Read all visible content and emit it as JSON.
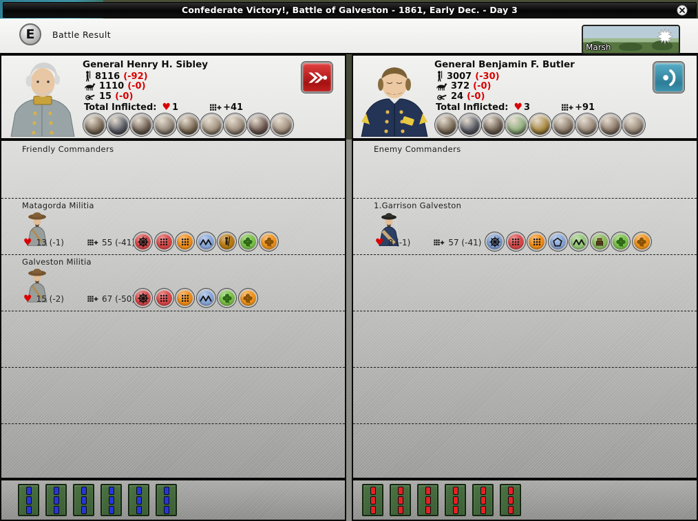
{
  "title_bar": {
    "title": "Confederate Victory!, Battle of Galveston - 1861, Early Dec. - Day 3"
  },
  "header": {
    "badge": "E",
    "label": "Battle Result",
    "terrain_label": "Marsh"
  },
  "labels": {
    "total_inflicted": "Total Inflicted:"
  },
  "colors": {
    "loss_red": "#d80000",
    "button_red": "#c51f1f",
    "button_teal": "#3d95b0"
  },
  "left_general": {
    "name": "General Henry H. Sibley",
    "stats": [
      {
        "icon": "infantry-icon",
        "value": "8116",
        "loss": "(-92)"
      },
      {
        "icon": "cavalry-icon",
        "value": "1110",
        "loss": "(-0)"
      },
      {
        "icon": "artillery-icon",
        "value": "15",
        "loss": "(-0)"
      }
    ],
    "inflicted_hearts": "1",
    "inflicted_hits": "+41",
    "action": "pursue",
    "medallions": [
      {
        "name": "supply-crates",
        "tint": "#7b6c59"
      },
      {
        "name": "siege-mortar",
        "tint": "#585c66"
      },
      {
        "name": "soldier-with-crate",
        "tint": "#6f6154"
      },
      {
        "name": "war-council",
        "tint": "#93887a"
      },
      {
        "name": "supply-stack",
        "tint": "#7b6a55"
      },
      {
        "name": "marching-column",
        "tint": "#a2937f"
      },
      {
        "name": "bayonet-drill",
        "tint": "#9c8d7c"
      },
      {
        "name": "camp-figure",
        "tint": "#6e5a52"
      },
      {
        "name": "field-gun",
        "tint": "#a39180"
      }
    ]
  },
  "right_general": {
    "name": "General Benjamin F. Butler",
    "stats": [
      {
        "icon": "infantry-icon",
        "value": "3007",
        "loss": "(-30)"
      },
      {
        "icon": "cavalry-icon",
        "value": "372",
        "loss": "(-0)"
      },
      {
        "icon": "artillery-icon",
        "value": "24",
        "loss": "(-0)"
      }
    ],
    "inflicted_hearts": "3",
    "inflicted_hits": "+91",
    "action": "retreat",
    "medallions": [
      {
        "name": "supply-crates",
        "tint": "#7b6c59"
      },
      {
        "name": "siege-mortar",
        "tint": "#585c66"
      },
      {
        "name": "soldier-with-crate",
        "tint": "#6f6154"
      },
      {
        "name": "camp-tent",
        "tint": "#8fae7d"
      },
      {
        "name": "gold-supplies",
        "tint": "#a8893f"
      },
      {
        "name": "marching-column",
        "tint": "#8d7d6c"
      },
      {
        "name": "bayonet-drill",
        "tint": "#978879"
      },
      {
        "name": "camp-figure",
        "tint": "#8a7868"
      },
      {
        "name": "field-gun",
        "tint": "#9a8c7c"
      }
    ]
  },
  "left_panel": {
    "header": "Friendly Commanders",
    "units": [
      {
        "name": "Matagorda Militia",
        "portrait": "confederate-militia",
        "hp": "13 (-1)",
        "hits": "55 (-41)",
        "badges": [
          {
            "name": "artillery-wheel-badge",
            "glyph": "wheel",
            "bg": "#d94848"
          },
          {
            "name": "red-dots-badge",
            "glyph": "dots",
            "bg": "#d94848"
          },
          {
            "name": "orange-dots-badge",
            "glyph": "dots",
            "bg": "#ef8d18"
          },
          {
            "name": "blue-zigzag-badge",
            "glyph": "zigzag",
            "bg": "#8aa8da"
          },
          {
            "name": "skirmisher-badge",
            "glyph": "soldier",
            "bg": "#b87a16",
            "fg": "#2a1c08"
          },
          {
            "name": "green-clover-badge",
            "glyph": "clover",
            "bg": "#7cc24a",
            "fg": "#2f6a16"
          },
          {
            "name": "orange-clover-badge",
            "glyph": "clover",
            "bg": "#ef941c",
            "fg": "#8a5208"
          }
        ]
      },
      {
        "name": "Galveston Militia",
        "portrait": "confederate-militia",
        "hp": "15 (-2)",
        "hits": "67 (-50)",
        "badges": [
          {
            "name": "artillery-wheel-badge",
            "glyph": "wheel",
            "bg": "#d94848"
          },
          {
            "name": "red-dots-badge",
            "glyph": "dots",
            "bg": "#d94848"
          },
          {
            "name": "orange-dots-badge",
            "glyph": "dots",
            "bg": "#ef8d18"
          },
          {
            "name": "blue-zigzag-badge",
            "glyph": "zigzag",
            "bg": "#8aa8da"
          },
          {
            "name": "green-clover-badge",
            "glyph": "clover",
            "bg": "#7cc24a",
            "fg": "#2f6a16"
          },
          {
            "name": "orange-clover-badge",
            "glyph": "clover",
            "bg": "#ef941c",
            "fg": "#8a5208"
          }
        ]
      }
    ]
  },
  "right_panel": {
    "header": "Enemy Commanders",
    "units": [
      {
        "name": "1.Garrison Galveston",
        "portrait": "union-infantry",
        "hp": "8 (-1)",
        "hits": "57 (-41)",
        "badges": [
          {
            "name": "artillery-wheel-badge",
            "glyph": "wheel",
            "bg": "#7e9ed2"
          },
          {
            "name": "red-dots-badge",
            "glyph": "dots",
            "bg": "#d94848"
          },
          {
            "name": "orange-dots-badge",
            "glyph": "dots",
            "bg": "#ef8d18"
          },
          {
            "name": "pentagon-badge",
            "glyph": "pentagon",
            "bg": "#8aa8da"
          },
          {
            "name": "green-zigzag-badge",
            "glyph": "zigzag",
            "bg": "#95c878"
          },
          {
            "name": "supply-crate-badge",
            "glyph": "crate",
            "bg": "#8fba5e"
          },
          {
            "name": "green-clover-badge",
            "glyph": "clover",
            "bg": "#7cc24a",
            "fg": "#2f6a16"
          },
          {
            "name": "orange-clover-badge",
            "glyph": "clover",
            "bg": "#ef941c",
            "fg": "#8a5208"
          }
        ]
      }
    ]
  },
  "bottom": {
    "left": {
      "count": 6,
      "bar_color": "#2636d6",
      "box_color": "#4b7343"
    },
    "right": {
      "count": 6,
      "bar_color": "#e32222",
      "box_color": "#4b7343"
    }
  }
}
